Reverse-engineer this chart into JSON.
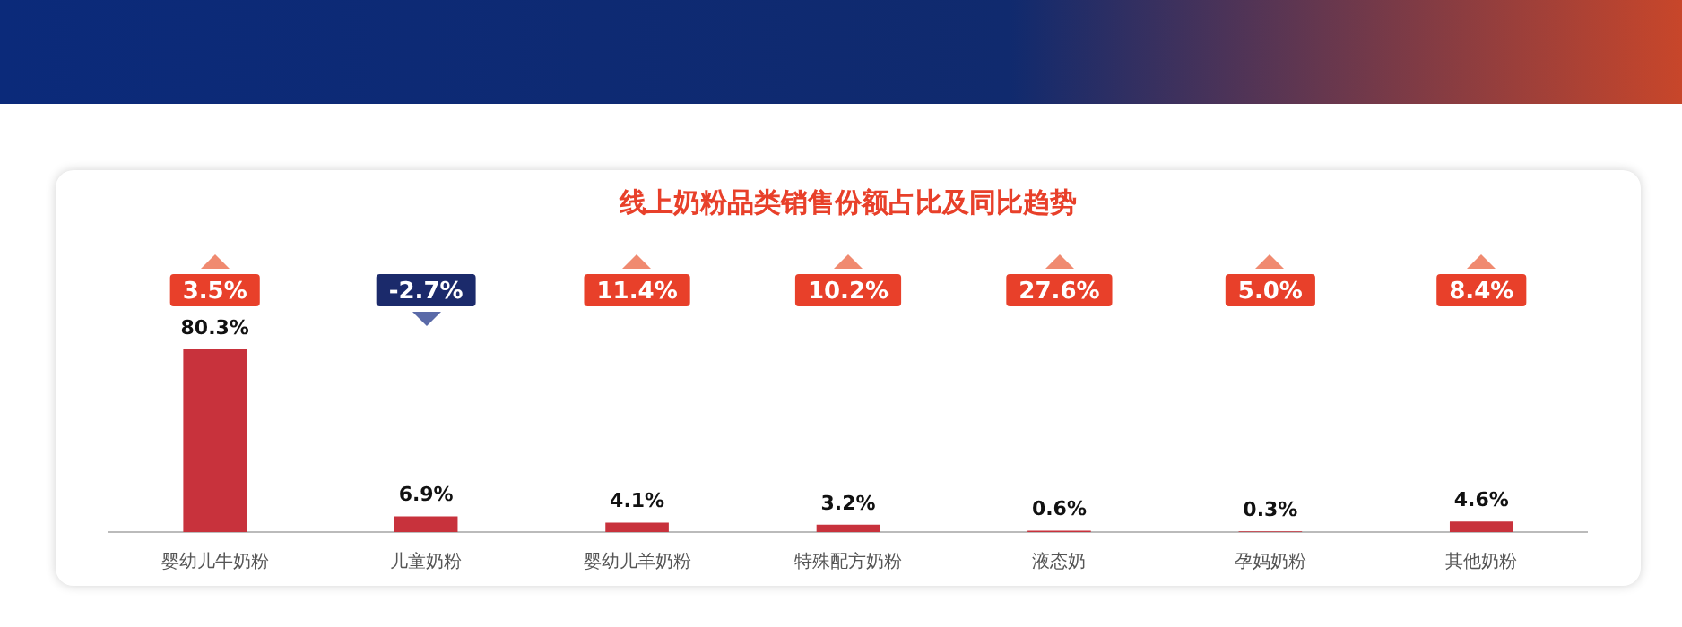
{
  "chart_data": {
    "type": "bar",
    "title": "线上奶粉品类销售份额占比及同比趋势",
    "categories": [
      "婴幼儿牛奶粉",
      "儿童奶粉",
      "婴幼儿羊奶粉",
      "特殊配方奶粉",
      "液态奶",
      "孕妈奶粉",
      "其他奶粉"
    ],
    "values": [
      80.3,
      6.9,
      4.1,
      3.2,
      0.6,
      0.3,
      4.6
    ],
    "color": "#c8323c",
    "value_labels": [
      "80.3%",
      "6.9%",
      "4.1%",
      "3.2%",
      "0.6%",
      "0.3%",
      "4.6%"
    ],
    "annotations": [
      "3.5%",
      "-2.7%",
      "11.4%",
      "10.2%",
      "27.6%",
      "5.0%",
      "8.4%"
    ]
  }
}
